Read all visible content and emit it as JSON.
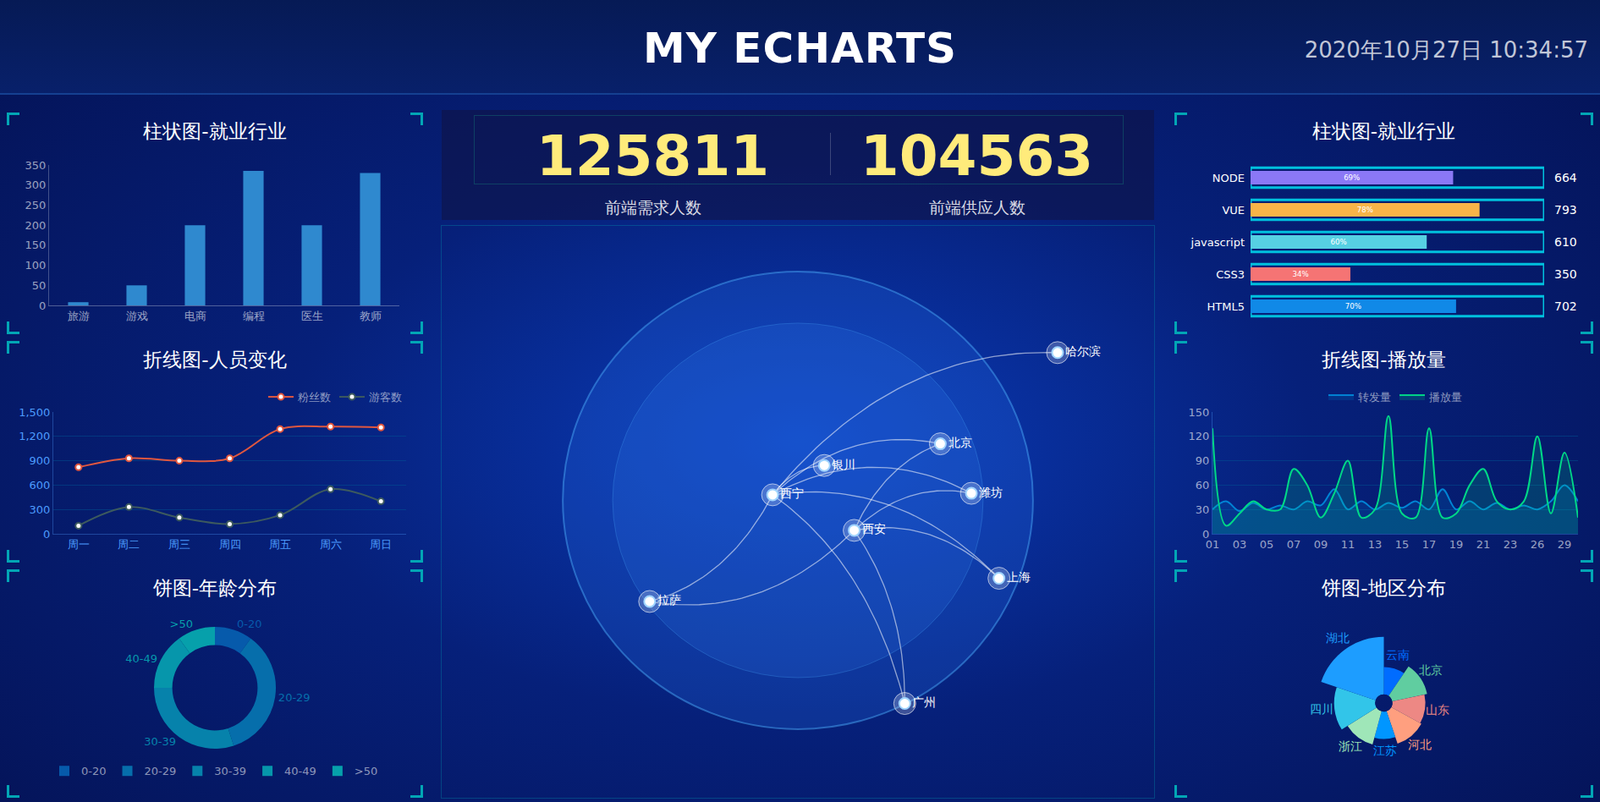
{
  "header": {
    "title": "MY ECHARTS",
    "datetime": "2020年10月27日 10:34:57"
  },
  "stats": [
    {
      "value": 125811,
      "label": "前端需求人数"
    },
    {
      "value": 104563,
      "label": "前端供应人数"
    }
  ],
  "chart_data": [
    {
      "type": "bar",
      "title": "柱状图-就业行业",
      "categories": [
        "旅游",
        "游戏",
        "电商",
        "编程",
        "医生",
        "教师"
      ],
      "values": [
        8,
        50,
        200,
        335,
        200,
        330
      ],
      "color": "#2f89cf",
      "ylim": [
        0,
        350
      ],
      "yticks": [
        0,
        50,
        100,
        150,
        200,
        250,
        300,
        350
      ],
      "grid": false
    },
    {
      "type": "line",
      "title": "折线图-人员变化",
      "categories": [
        "周一",
        "周二",
        "周三",
        "周四",
        "周五",
        "周六",
        "周日"
      ],
      "series": [
        {
          "name": "粉丝数",
          "color": "#e0573f",
          "values": [
            820,
            930,
            900,
            930,
            1290,
            1320,
            1310
          ]
        },
        {
          "name": "游客数",
          "color": "#3d5a5e",
          "values": [
            100,
            330,
            200,
            120,
            230,
            550,
            400
          ]
        }
      ],
      "ylim": [
        0,
        1500
      ],
      "yticks": [
        0,
        300,
        600,
        900,
        {
          "value": 1200,
          "label": "1,200"
        },
        {
          "value": 1500,
          "label": "1,500"
        }
      ],
      "grid": true,
      "legend": "top-right",
      "marker": "circle",
      "line_style": "smooth"
    },
    {
      "type": "pie",
      "title": "饼图-年龄分布",
      "categories": [
        "0-20",
        "20-29",
        "30-39",
        "40-49",
        ">50"
      ],
      "values": [
        10,
        35,
        30,
        15,
        10
      ],
      "colors": [
        "#065aab",
        "#066eab",
        "#0682ab",
        "#0696ab",
        "#06a0ab"
      ],
      "legend": "bottom"
    },
    {
      "type": "bar",
      "orientation": "horizontal",
      "title": "柱状图-就业行业",
      "categories": [
        "NODE",
        "VUE",
        "javascript",
        "CSS3",
        "HTML5"
      ],
      "values": [
        69,
        78,
        60,
        34,
        70
      ],
      "value_labels": [
        "69%",
        "78%",
        "60%",
        "34%",
        "70%"
      ],
      "totals": [
        664,
        793,
        610,
        350,
        702
      ],
      "colors": [
        "#8b78f6",
        "#f8b448",
        "#56d0e3",
        "#f57474",
        "#1089e7"
      ],
      "xlim": [
        0,
        100
      ],
      "data_labels": true,
      "tick_labels": "y"
    },
    {
      "type": "line",
      "title": "折线图-播放量",
      "categories": [
        "01",
        null,
        "03",
        null,
        "05",
        null,
        "07",
        null,
        "09",
        null,
        "11",
        null,
        "13",
        null,
        "15",
        null,
        "17",
        null,
        "19",
        null,
        "21",
        null,
        "23",
        null,
        "26",
        null,
        "29",
        null
      ],
      "series": [
        {
          "name": "转发量",
          "color": "#0184d5",
          "values": [
            30,
            40,
            28,
            38,
            30,
            35,
            30,
            40,
            35,
            55,
            30,
            40,
            30,
            38,
            32,
            40,
            30,
            55,
            30,
            40,
            30,
            38,
            30,
            35,
            30,
            40,
            60,
            40
          ]
        },
        {
          "name": "播放量",
          "color": "#00d887",
          "values": [
            130,
            10,
            25,
            40,
            30,
            30,
            80,
            60,
            20,
            50,
            90,
            20,
            30,
            145,
            25,
            20,
            130,
            20,
            25,
            60,
            80,
            40,
            30,
            40,
            120,
            25,
            100,
            20
          ]
        }
      ],
      "ylim": [
        0,
        150
      ],
      "yticks": [
        0,
        30,
        60,
        90,
        120,
        150
      ],
      "grid": true,
      "legend": "top",
      "line_style": "smooth"
    },
    {
      "type": "rose",
      "title": "饼图-地区分布",
      "categories": [
        "云南",
        "北京",
        "山东",
        "河北",
        "江苏",
        "浙江",
        "四川",
        "湖北"
      ],
      "values": [
        20,
        26,
        24,
        25,
        20,
        25,
        30,
        42
      ],
      "colors": [
        "#006cff",
        "#60cda0",
        "#ed8884",
        "#ff9f7f",
        "#0096ff",
        "#9fe6b8",
        "#32c5e9",
        "#1d9dff"
      ]
    },
    {
      "type": "map",
      "cities": [
        {
          "name": "哈尔滨",
          "lon": 126.6,
          "lat": 45.8
        },
        {
          "name": "北京",
          "lon": 116.4,
          "lat": 39.9
        },
        {
          "name": "银川",
          "lon": 106.3,
          "lat": 38.5
        },
        {
          "name": "西宁",
          "lon": 101.8,
          "lat": 36.6
        },
        {
          "name": "潍坊",
          "lon": 119.1,
          "lat": 36.7
        },
        {
          "name": "西安",
          "lon": 108.9,
          "lat": 34.3
        },
        {
          "name": "上海",
          "lon": 121.5,
          "lat": 31.2
        },
        {
          "name": "拉萨",
          "lon": 91.1,
          "lat": 29.7
        },
        {
          "name": "广州",
          "lon": 113.3,
          "lat": 23.1
        }
      ],
      "routes": [
        {
          "from": "西宁",
          "to": "哈尔滨"
        },
        {
          "from": "西宁",
          "to": "北京"
        },
        {
          "from": "西宁",
          "to": "银川"
        },
        {
          "from": "西宁",
          "to": "潍坊"
        },
        {
          "from": "西宁",
          "to": "上海"
        },
        {
          "from": "西宁",
          "to": "广州"
        },
        {
          "from": "西宁",
          "to": "拉萨"
        },
        {
          "from": "西安",
          "to": "北京"
        },
        {
          "from": "西安",
          "to": "上海"
        },
        {
          "from": "西安",
          "to": "广州"
        },
        {
          "from": "西安",
          "to": "拉萨"
        },
        {
          "from": "西安",
          "to": "潍坊"
        }
      ],
      "xlim": [
        73,
        135
      ],
      "ylim": [
        17,
        54
      ],
      "tick_labels": false
    }
  ]
}
